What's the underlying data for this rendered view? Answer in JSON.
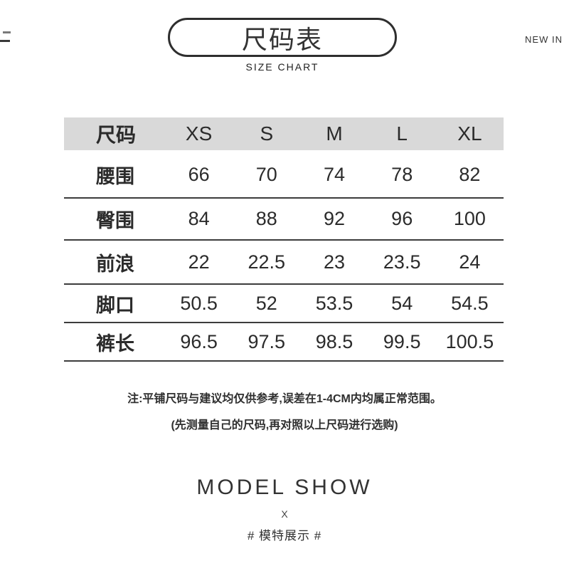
{
  "header": {
    "badge_cn": "尺码表",
    "badge_en": "SIZE CHART",
    "new_in_label": "NEW IN"
  },
  "chart_data": {
    "type": "table",
    "title": "尺码表",
    "subtitle": "SIZE CHART",
    "columns": [
      "尺码",
      "XS",
      "S",
      "M",
      "L",
      "XL"
    ],
    "rows": [
      {
        "label": "腰围",
        "values": [
          "66",
          "70",
          "74",
          "78",
          "82"
        ]
      },
      {
        "label": "臀围",
        "values": [
          "84",
          "88",
          "92",
          "96",
          "100"
        ]
      },
      {
        "label": "前浪",
        "values": [
          "22",
          "22.5",
          "23",
          "23.5",
          "24"
        ]
      },
      {
        "label": "脚口",
        "values": [
          "50.5",
          "52",
          "53.5",
          "54",
          "54.5"
        ]
      },
      {
        "label": "裤长",
        "values": [
          "96.5",
          "97.5",
          "98.5",
          "99.5",
          "100.5"
        ]
      }
    ],
    "notes": [
      "注:平铺尺码与建议均仅供参考,误差在1-4CM内均属正常范围。",
      "(先测量自己的尺码,再对照以上尺码进行选购)"
    ],
    "layout": {
      "header_bg": "#d9d9d9",
      "row_line_color": "#3c3c3c",
      "grid": "horizontal-lines-only"
    }
  },
  "notes": {
    "line1": "注:平铺尺码与建议均仅供参考,误差在1-4CM内均属正常范围。",
    "line2": "(先测量自己的尺码,再对照以上尺码进行选购)"
  },
  "footer": {
    "model_show": "MODEL SHOW",
    "separator": "X",
    "hashtag": "# 模特展示 #"
  },
  "colors": {
    "header_bg": "#d9d9d9",
    "text": "#303030",
    "line": "#3c3c3c",
    "background": "#ffffff"
  }
}
